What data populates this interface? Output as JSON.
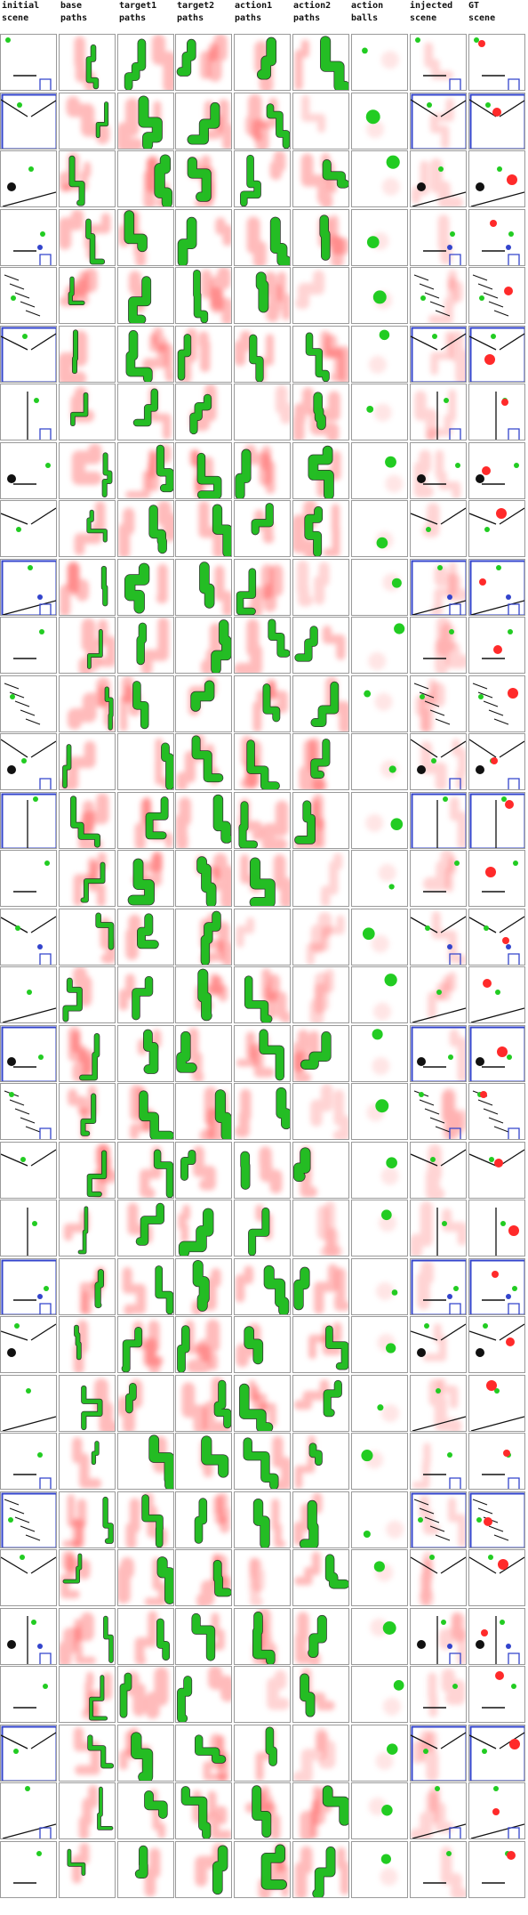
{
  "columns": [
    {
      "key": "initial_scene",
      "label": "initial\nscene"
    },
    {
      "key": "base_paths",
      "label": "base\npaths"
    },
    {
      "key": "target1_paths",
      "label": "target1\npaths"
    },
    {
      "key": "target2_paths",
      "label": "target2\npaths"
    },
    {
      "key": "action1_paths",
      "label": "action1\npaths"
    },
    {
      "key": "action2_paths",
      "label": "action2\npaths"
    },
    {
      "key": "action_balls",
      "label": "action\nballs"
    },
    {
      "key": "injected_scene",
      "label": "injected\nscene"
    },
    {
      "key": "gt_scene",
      "label": "GT\nscene"
    }
  ],
  "row_count": 32,
  "colors": {
    "green": "#22cc22",
    "red": "#ff2a2a",
    "dark": "#111111",
    "blue": "#3344cc",
    "grid": "#9a9a9a"
  }
}
